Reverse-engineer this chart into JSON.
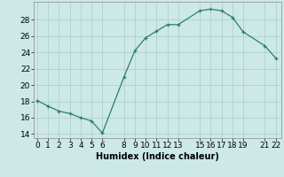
{
  "x": [
    0,
    1,
    2,
    3,
    4,
    5,
    6,
    8,
    9,
    10,
    11,
    12,
    13,
    15,
    16,
    17,
    18,
    19,
    21,
    22
  ],
  "y": [
    18.1,
    17.4,
    16.8,
    16.5,
    16.0,
    15.6,
    14.1,
    21.0,
    24.2,
    25.8,
    26.6,
    27.4,
    27.4,
    29.1,
    29.3,
    29.1,
    28.3,
    26.5,
    24.8,
    23.3
  ],
  "xtick_show": [
    "0",
    "1",
    "2",
    "3",
    "4",
    "5",
    "6",
    "8",
    "9",
    "10",
    "11",
    "12",
    "13",
    "15",
    "16",
    "17",
    "18",
    "19",
    "21",
    "22"
  ],
  "xtick_pos": [
    0,
    1,
    2,
    3,
    4,
    5,
    6,
    8,
    9,
    10,
    11,
    12,
    13,
    15,
    16,
    17,
    18,
    19,
    21,
    22
  ],
  "yticks": [
    14,
    16,
    18,
    20,
    22,
    24,
    26,
    28
  ],
  "ylim": [
    13.5,
    30.2
  ],
  "xlim": [
    -0.3,
    22.5
  ],
  "xlabel": "Humidex (Indice chaleur)",
  "line_color": "#2d7d6e",
  "marker": "+",
  "bg_color": "#cce9e7",
  "grid_color": "#b0d0ce",
  "label_fontsize": 7,
  "tick_fontsize": 6.5
}
